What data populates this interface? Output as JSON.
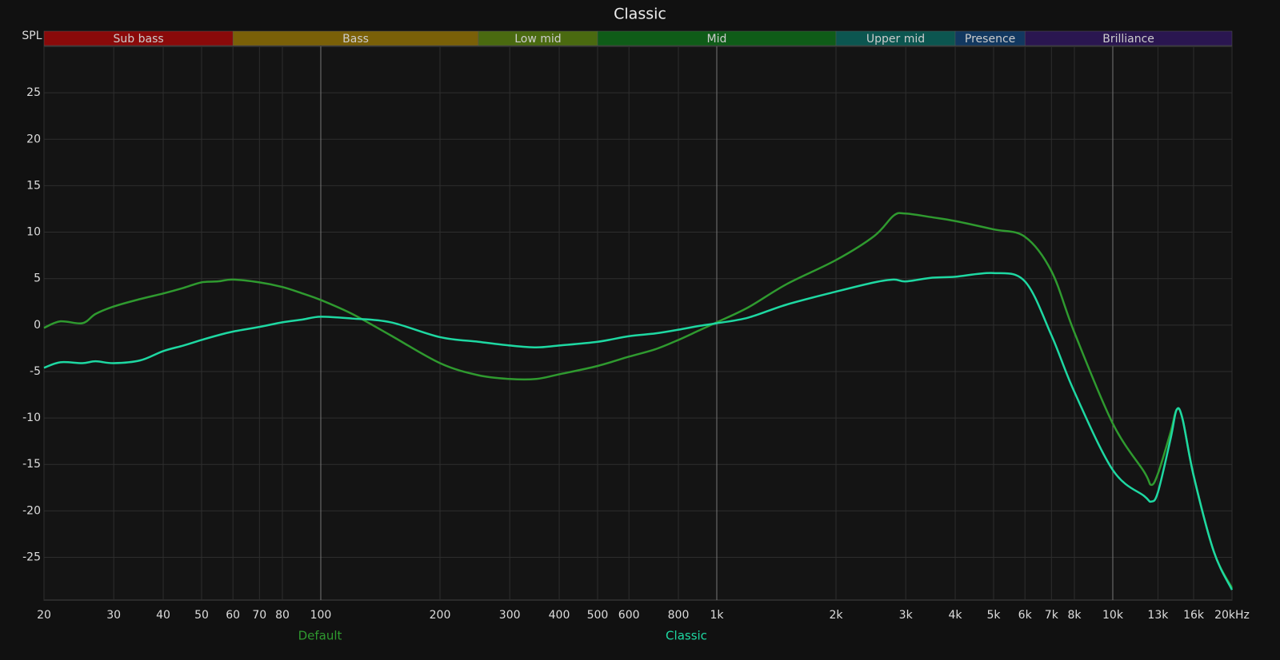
{
  "chart_data": {
    "type": "line",
    "title": "Classic",
    "ylabel": "SPL",
    "xscale": "log",
    "grid": true,
    "x": [
      20,
      22,
      25,
      27,
      30,
      35,
      40,
      45,
      50,
      55,
      60,
      70,
      80,
      90,
      100,
      120,
      150,
      200,
      250,
      300,
      350,
      400,
      500,
      600,
      700,
      800,
      900,
      1000,
      1200,
      1500,
      2000,
      2500,
      2800,
      3000,
      3500,
      4000,
      5000,
      6000,
      7000,
      8000,
      10000,
      12000,
      12500,
      13000,
      14000,
      14500,
      15000,
      16000,
      18000,
      20000
    ],
    "series": [
      {
        "name": "Default",
        "color": "#2f9a2f",
        "values": [
          -0.3,
          0.4,
          0.2,
          1.2,
          2.0,
          2.8,
          3.4,
          4.0,
          4.6,
          4.7,
          4.9,
          4.6,
          4.1,
          3.4,
          2.7,
          1.2,
          -1.1,
          -4.1,
          -5.4,
          -5.8,
          -5.8,
          -5.3,
          -4.4,
          -3.4,
          -2.6,
          -1.6,
          -0.6,
          0.3,
          1.9,
          4.4,
          7.0,
          9.6,
          11.8,
          12.0,
          11.6,
          11.2,
          10.3,
          9.5,
          5.8,
          -0.8,
          -10.6,
          -15.8,
          -17.2,
          -16.0,
          -11.5,
          -9.1,
          -10.1,
          -16.2,
          -24.4,
          -28.3
        ]
      },
      {
        "name": "Classic",
        "color": "#1ed8a2",
        "values": [
          -4.6,
          -4.0,
          -4.1,
          -3.9,
          -4.1,
          -3.8,
          -2.8,
          -2.2,
          -1.6,
          -1.1,
          -0.7,
          -0.2,
          0.3,
          0.6,
          0.9,
          0.7,
          0.3,
          -1.3,
          -1.8,
          -2.2,
          -2.4,
          -2.2,
          -1.8,
          -1.2,
          -0.9,
          -0.5,
          -0.1,
          0.2,
          0.8,
          2.2,
          3.6,
          4.6,
          4.9,
          4.7,
          5.1,
          5.2,
          5.6,
          4.7,
          -1.1,
          -7.2,
          -15.6,
          -18.4,
          -19.0,
          -18.0,
          -12.2,
          -9.1,
          -10.1,
          -16.2,
          -24.4,
          -28.5
        ]
      }
    ],
    "xlim": [
      20,
      20000
    ],
    "ylim": [
      -29.6,
      30
    ],
    "xticks": [
      20,
      30,
      40,
      50,
      60,
      70,
      80,
      100,
      200,
      300,
      400,
      500,
      600,
      800,
      {
        "value": 1000,
        "label": "1k"
      },
      {
        "value": 2000,
        "label": "2k"
      },
      {
        "value": 3000,
        "label": "3k"
      },
      {
        "value": 4000,
        "label": "4k"
      },
      {
        "value": 5000,
        "label": "5k"
      },
      {
        "value": 6000,
        "label": "6k"
      },
      {
        "value": 7000,
        "label": "7k"
      },
      {
        "value": 8000,
        "label": "8k"
      },
      {
        "value": 10000,
        "label": "10k"
      },
      {
        "value": 13000,
        "label": "13k"
      },
      {
        "value": 16000,
        "label": "16k"
      },
      {
        "value": 20000,
        "label": "20kHz"
      }
    ],
    "yticks": [
      -25,
      -20,
      -15,
      -10,
      -5,
      0,
      5,
      10,
      15,
      20,
      25
    ],
    "bands": [
      {
        "label": "Sub bass",
        "from": 20,
        "to": 60,
        "color": "#8a0a0a"
      },
      {
        "label": "Bass",
        "from": 60,
        "to": 250,
        "color": "#7a6008"
      },
      {
        "label": "Low mid",
        "from": 250,
        "to": 500,
        "color": "#4a6a10"
      },
      {
        "label": "Mid",
        "from": 500,
        "to": 2000,
        "color": "#0f5c18"
      },
      {
        "label": "Upper mid",
        "from": 2000,
        "to": 4000,
        "color": "#0c5650"
      },
      {
        "label": "Presence",
        "from": 4000,
        "to": 6000,
        "color": "#123860"
      },
      {
        "label": "Brilliance",
        "from": 6000,
        "to": 20000,
        "color": "#2a1650"
      }
    ]
  }
}
